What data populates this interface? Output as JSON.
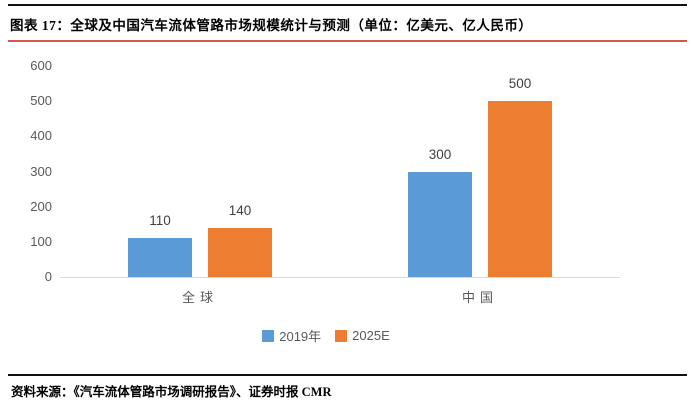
{
  "header": {
    "title": "图表 17：全球及中国汽车流体管路市场规模统计与预测（单位：亿美元、亿人民币）"
  },
  "chart_data": {
    "type": "bar",
    "title": "全球及中国汽车流体管路市场规模统计与预测",
    "units": "亿美元、亿人民币",
    "categories": [
      "全球",
      "中国"
    ],
    "series": [
      {
        "name": "2019年",
        "color": "#5B9BD5",
        "values": [
          110,
          300
        ]
      },
      {
        "name": "2025E",
        "color": "#ED7D31",
        "values": [
          140,
          500
        ]
      }
    ],
    "xlabel": "",
    "ylabel": "",
    "ylim": [
      0,
      600
    ],
    "yticks": [
      0,
      100,
      200,
      300,
      400,
      500,
      600
    ],
    "grid": false,
    "data_labels": true,
    "legend_position": "bottom"
  },
  "footer": {
    "source": "资料来源：《汽车流体管路市场调研报告》、证券时报 CMR"
  },
  "colors": {
    "rule_black": "#111111",
    "rule_red": "#D4574E",
    "axis_line": "#D9D9D9",
    "tick_text": "#595959",
    "value_label_text": "#404040",
    "category_text": "#595959",
    "legend_text": "#595959",
    "series_2019": "#5B9BD5",
    "series_2025": "#ED7D31"
  }
}
